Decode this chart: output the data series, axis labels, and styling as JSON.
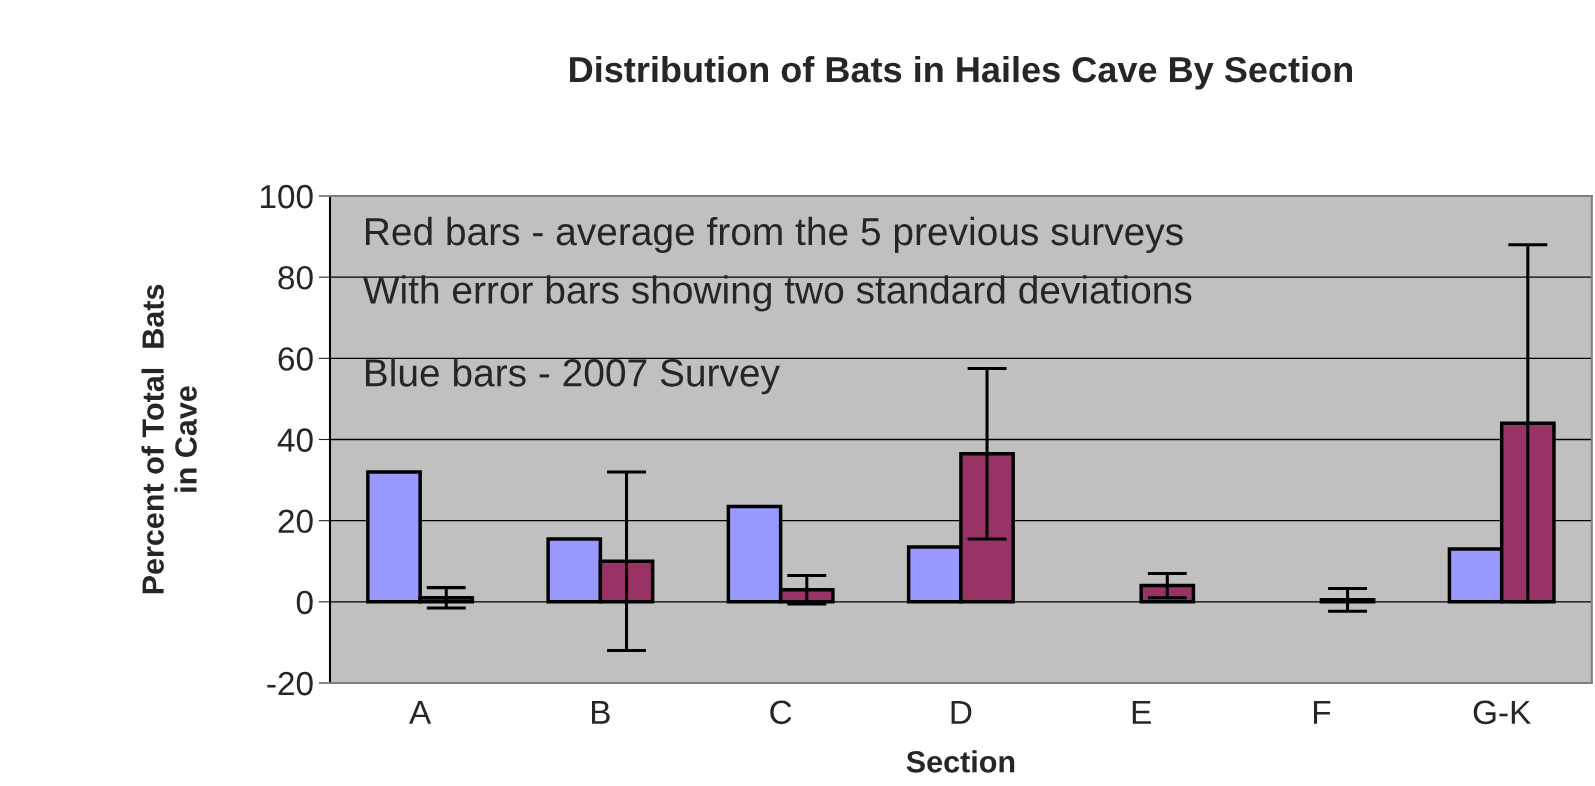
{
  "chart_data": {
    "type": "bar",
    "title": "Distribution of Bats in Hailes Cave By Section",
    "xlabel": "Section",
    "ylabel": "Percent of Total  Bats\nin Cave",
    "categories": [
      "A",
      "B",
      "C",
      "D",
      "E",
      "F",
      "G-K"
    ],
    "series": [
      {
        "color": "#9999ff",
        "values": [
          32,
          15.5,
          23.5,
          13.5,
          null,
          null,
          13
        ]
      },
      {
        "color": "#993366",
        "values": [
          1,
          10,
          3,
          36.5,
          4,
          0.5,
          44
        ],
        "errors": [
          2.5,
          22,
          3.5,
          21,
          3,
          2.8,
          44
        ]
      }
    ],
    "ylim": [
      -20,
      100
    ],
    "yticks": [
      -20,
      0,
      20,
      40,
      60,
      80,
      100
    ],
    "grid": "y",
    "annotations": [
      "Red bars - average from the 5 previous surveys",
      "With error bars showing two standard deviations",
      "Blue bars - 2007 Survey"
    ]
  }
}
